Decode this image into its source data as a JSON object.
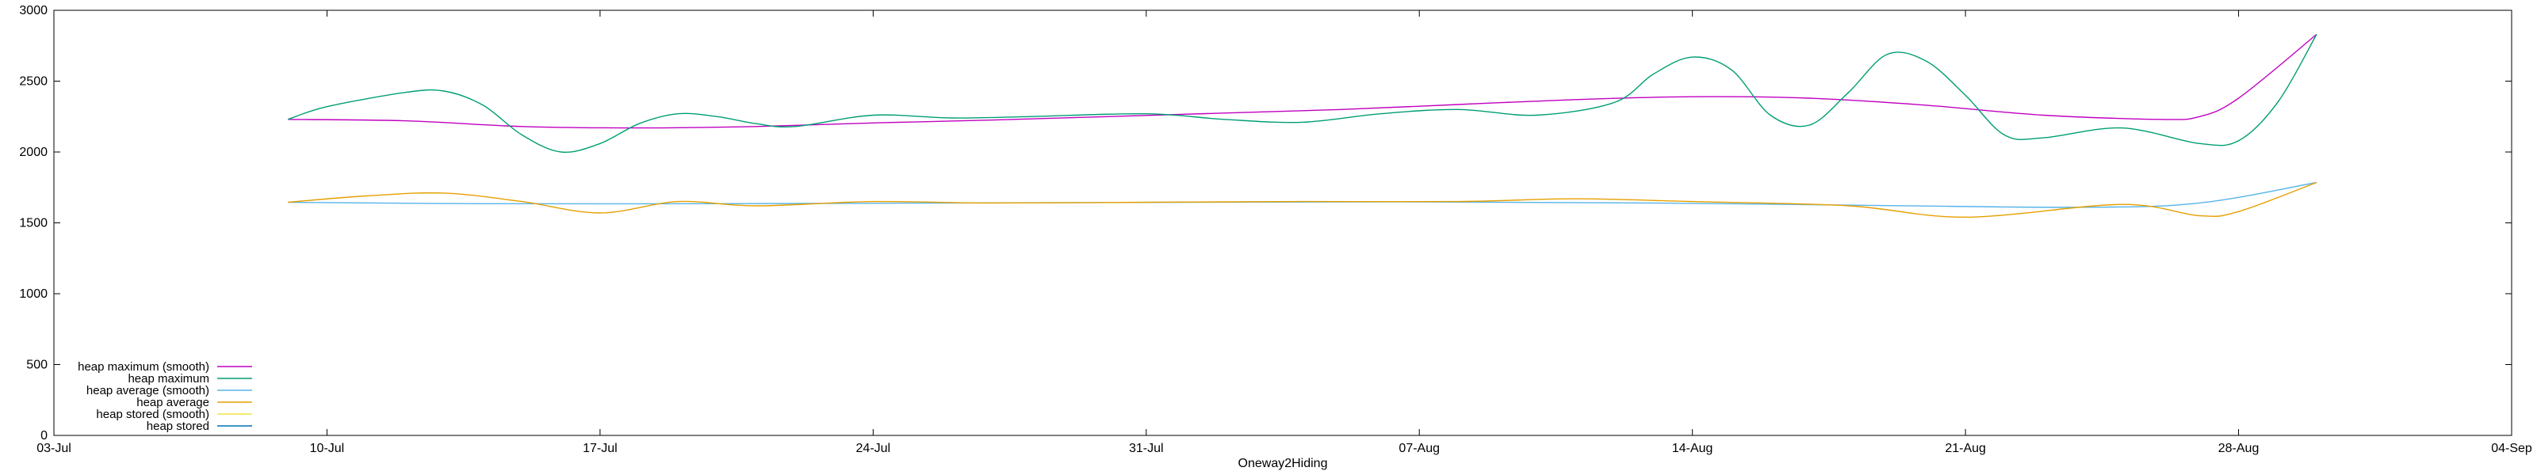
{
  "chart_data": {
    "type": "line",
    "title": "",
    "xlabel": "Oneway2Hiding",
    "ylabel": "",
    "x_tick_labels": [
      "03-Jul",
      "10-Jul",
      "17-Jul",
      "24-Jul",
      "31-Jul",
      "07-Aug",
      "14-Aug",
      "21-Aug",
      "28-Aug",
      "04-Sep"
    ],
    "x_tick_dates": [
      "2024-07-03",
      "2024-07-10",
      "2024-07-17",
      "2024-07-24",
      "2024-07-31",
      "2024-08-07",
      "2024-08-14",
      "2024-08-21",
      "2024-08-28",
      "2024-09-04"
    ],
    "xlim": [
      "2024-07-03",
      "2024-09-04"
    ],
    "y_tick_labels": [
      "0",
      "500",
      "1000",
      "1500",
      "2000",
      "2500",
      "3000"
    ],
    "y_ticks": [
      0,
      500,
      1000,
      1500,
      2000,
      2500,
      3000
    ],
    "ylim": [
      0,
      3000
    ],
    "grid": false,
    "legend_position": "bottom-left",
    "series": [
      {
        "name": "heap maximum (smooth)",
        "color": "#c000c0",
        "points": [
          [
            "2024-07-09",
            2230
          ],
          [
            "2024-07-12",
            2220
          ],
          [
            "2024-07-15",
            2180
          ],
          [
            "2024-07-18",
            2170
          ],
          [
            "2024-07-21",
            2180
          ],
          [
            "2024-07-24",
            2205
          ],
          [
            "2024-07-27",
            2225
          ],
          [
            "2024-07-30",
            2250
          ],
          [
            "2024-08-02",
            2275
          ],
          [
            "2024-08-05",
            2300
          ],
          [
            "2024-08-08",
            2335
          ],
          [
            "2024-08-11",
            2370
          ],
          [
            "2024-08-14",
            2390
          ],
          [
            "2024-08-17",
            2380
          ],
          [
            "2024-08-20",
            2330
          ],
          [
            "2024-08-23",
            2260
          ],
          [
            "2024-08-26",
            2230
          ],
          [
            "2024-08-27",
            2250
          ],
          [
            "2024-08-28",
            2380
          ],
          [
            "2024-08-30",
            2830
          ]
        ]
      },
      {
        "name": "heap maximum",
        "color": "#009e73",
        "points": [
          [
            "2024-07-09",
            2230
          ],
          [
            "2024-07-10",
            2320
          ],
          [
            "2024-07-12",
            2420
          ],
          [
            "2024-07-13",
            2430
          ],
          [
            "2024-07-14",
            2330
          ],
          [
            "2024-07-15",
            2120
          ],
          [
            "2024-07-16",
            2000
          ],
          [
            "2024-07-17",
            2060
          ],
          [
            "2024-07-18",
            2200
          ],
          [
            "2024-07-19",
            2270
          ],
          [
            "2024-07-20",
            2250
          ],
          [
            "2024-07-21",
            2200
          ],
          [
            "2024-07-22",
            2180
          ],
          [
            "2024-07-24",
            2260
          ],
          [
            "2024-07-26",
            2240
          ],
          [
            "2024-07-28",
            2250
          ],
          [
            "2024-07-31",
            2270
          ],
          [
            "2024-08-02",
            2230
          ],
          [
            "2024-08-04",
            2210
          ],
          [
            "2024-08-06",
            2270
          ],
          [
            "2024-08-08",
            2300
          ],
          [
            "2024-08-10",
            2260
          ],
          [
            "2024-08-12",
            2350
          ],
          [
            "2024-08-13",
            2550
          ],
          [
            "2024-08-14",
            2670
          ],
          [
            "2024-08-15",
            2580
          ],
          [
            "2024-08-16",
            2260
          ],
          [
            "2024-08-17",
            2190
          ],
          [
            "2024-08-18",
            2420
          ],
          [
            "2024-08-19",
            2690
          ],
          [
            "2024-08-20",
            2640
          ],
          [
            "2024-08-21",
            2400
          ],
          [
            "2024-08-22",
            2120
          ],
          [
            "2024-08-23",
            2100
          ],
          [
            "2024-08-25",
            2170
          ],
          [
            "2024-08-27",
            2060
          ],
          [
            "2024-08-28",
            2080
          ],
          [
            "2024-08-29",
            2350
          ],
          [
            "2024-08-30",
            2830
          ]
        ]
      },
      {
        "name": "heap average (smooth)",
        "color": "#56b4e9",
        "points": [
          [
            "2024-07-09",
            1645
          ],
          [
            "2024-07-14",
            1635
          ],
          [
            "2024-07-20",
            1635
          ],
          [
            "2024-07-26",
            1640
          ],
          [
            "2024-08-01",
            1645
          ],
          [
            "2024-08-07",
            1648
          ],
          [
            "2024-08-13",
            1640
          ],
          [
            "2024-08-19",
            1622
          ],
          [
            "2024-08-24",
            1610
          ],
          [
            "2024-08-27",
            1640
          ],
          [
            "2024-08-30",
            1785
          ]
        ]
      },
      {
        "name": "heap average",
        "color": "#e69f00",
        "points": [
          [
            "2024-07-09",
            1645
          ],
          [
            "2024-07-11",
            1690
          ],
          [
            "2024-07-13",
            1710
          ],
          [
            "2024-07-15",
            1650
          ],
          [
            "2024-07-17",
            1570
          ],
          [
            "2024-07-19",
            1650
          ],
          [
            "2024-07-21",
            1620
          ],
          [
            "2024-07-24",
            1650
          ],
          [
            "2024-07-27",
            1640
          ],
          [
            "2024-07-31",
            1645
          ],
          [
            "2024-08-04",
            1650
          ],
          [
            "2024-08-08",
            1650
          ],
          [
            "2024-08-11",
            1670
          ],
          [
            "2024-08-14",
            1650
          ],
          [
            "2024-08-18",
            1620
          ],
          [
            "2024-08-21",
            1540
          ],
          [
            "2024-08-25",
            1630
          ],
          [
            "2024-08-27",
            1550
          ],
          [
            "2024-08-28",
            1580
          ],
          [
            "2024-08-30",
            1785
          ]
        ]
      },
      {
        "name": "heap stored (smooth)",
        "color": "#f0e442",
        "points": []
      },
      {
        "name": "heap stored",
        "color": "#0072b2",
        "points": []
      }
    ]
  }
}
